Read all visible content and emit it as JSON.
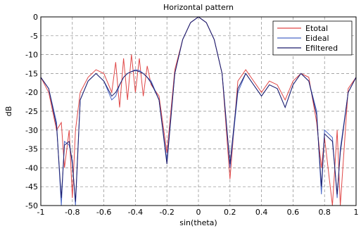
{
  "chart_data": {
    "type": "line",
    "title": "Horizontal pattern",
    "xlabel": "sin(theta)",
    "ylabel": "dB",
    "x": [
      -1,
      -0.95,
      -0.9,
      -0.87,
      -0.85,
      -0.82,
      -0.8,
      -0.78,
      -0.75,
      -0.7,
      -0.65,
      -0.6,
      -0.55,
      -0.525,
      -0.5,
      -0.475,
      -0.45,
      -0.425,
      -0.4,
      -0.375,
      -0.35,
      -0.325,
      -0.3,
      -0.25,
      -0.2,
      -0.15,
      -0.1,
      -0.05,
      0,
      0.05,
      0.1,
      0.15,
      0.2,
      0.25,
      0.3,
      0.35,
      0.4,
      0.45,
      0.5,
      0.55,
      0.6,
      0.65,
      0.7,
      0.75,
      0.78,
      0.8,
      0.85,
      0.88,
      0.9,
      0.95,
      1
    ],
    "series": [
      {
        "name": "Etotal",
        "color": "#e04848",
        "values": [
          -16,
          -20,
          -30,
          -28,
          -40,
          -30,
          -48,
          -30,
          -20,
          -16,
          -14,
          -15,
          -20,
          -12,
          -24,
          -11,
          -22,
          -10,
          -20,
          -11,
          -21,
          -13,
          -18,
          -21,
          -36,
          -14,
          -6,
          -1.5,
          0,
          -1.5,
          -6,
          -15,
          -43,
          -17,
          -14,
          -17,
          -20,
          -17,
          -18,
          -22,
          -17,
          -15,
          -16,
          -28,
          -40,
          -32,
          -50,
          -30,
          -50,
          -19,
          -16
        ]
      },
      {
        "name": "Eideal",
        "color": "#4a68c8",
        "values": [
          -16,
          -19,
          -28,
          -50,
          -33,
          -34,
          -38,
          -50,
          -22,
          -17,
          -15,
          -17,
          -22,
          -21,
          -18,
          -16,
          -15,
          -14.5,
          -14,
          -14.2,
          -15,
          -16,
          -17,
          -22,
          -38,
          -15,
          -6,
          -1.5,
          0,
          -1.5,
          -6,
          -15,
          -40,
          -20,
          -15,
          -18,
          -21,
          -18,
          -19,
          -24,
          -18,
          -15,
          -17,
          -25,
          -47,
          -30,
          -32,
          -48,
          -35,
          -20,
          -16
        ]
      },
      {
        "name": "Efiltered",
        "color": "#1c1c6a",
        "values": [
          -16,
          -19,
          -29,
          -48,
          -34,
          -33,
          -39,
          -49,
          -22,
          -17,
          -15,
          -17,
          -21,
          -20,
          -18,
          -16,
          -15,
          -14.5,
          -14.2,
          -14.5,
          -15,
          -16,
          -17.5,
          -22,
          -39,
          -15,
          -6,
          -1.5,
          0,
          -1.5,
          -6,
          -15,
          -39,
          -19,
          -15,
          -18,
          -21,
          -18,
          -19,
          -24,
          -18,
          -15,
          -17,
          -26,
          -45,
          -31,
          -33,
          -47,
          -36,
          -20,
          -16
        ]
      }
    ],
    "xlim": [
      -1,
      1
    ],
    "ylim": [
      -50,
      0
    ],
    "xticks": [
      -1,
      -0.8,
      -0.6,
      -0.4,
      -0.2,
      0,
      0.2,
      0.4,
      0.6,
      0.8,
      1
    ],
    "yticks": [
      0,
      -5,
      -10,
      -15,
      -20,
      -25,
      -30,
      -35,
      -40,
      -45,
      -50
    ],
    "grid": true,
    "legend": "top-right"
  }
}
